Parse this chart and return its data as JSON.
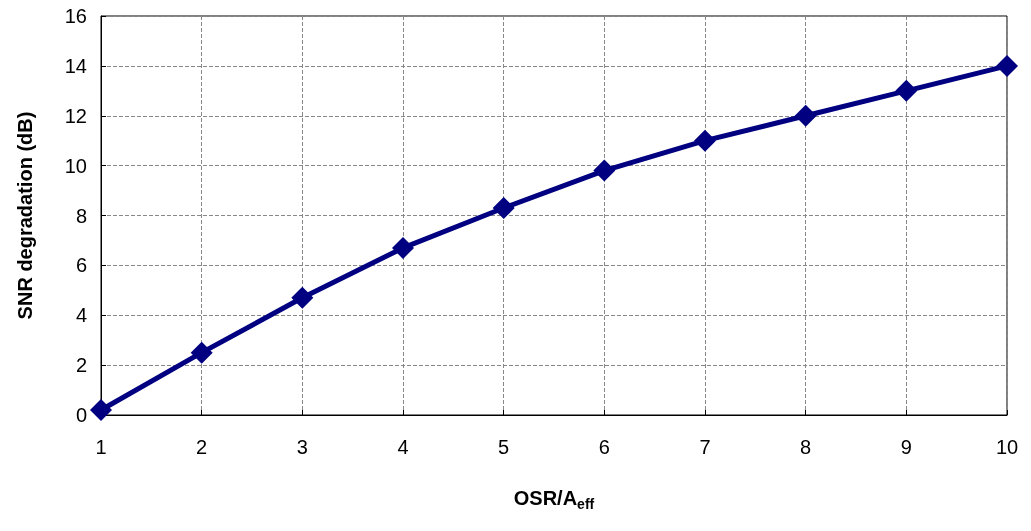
{
  "chart_data": {
    "type": "line",
    "xlabel": "OSR/A$_{eff}$",
    "ylabel": "SNR degradation (dB)",
    "x": [
      1,
      2,
      3,
      4,
      5,
      6,
      7,
      8,
      9,
      10
    ],
    "series": [
      {
        "color": "#000080",
        "values": [
          0.2,
          2.5,
          4.7,
          6.7,
          8.3,
          9.8,
          11.0,
          12.0,
          13.0,
          14.0
        ]
      }
    ],
    "xlim": [
      1,
      10
    ],
    "xticks": [
      1,
      2,
      3,
      4,
      5,
      6,
      7,
      8,
      9,
      10
    ],
    "ylim": [
      0,
      16
    ],
    "yticks": [
      0,
      2,
      4,
      6,
      8,
      10,
      12,
      14,
      16
    ],
    "grid": true,
    "marker": "diamond",
    "line_style": "solid"
  }
}
